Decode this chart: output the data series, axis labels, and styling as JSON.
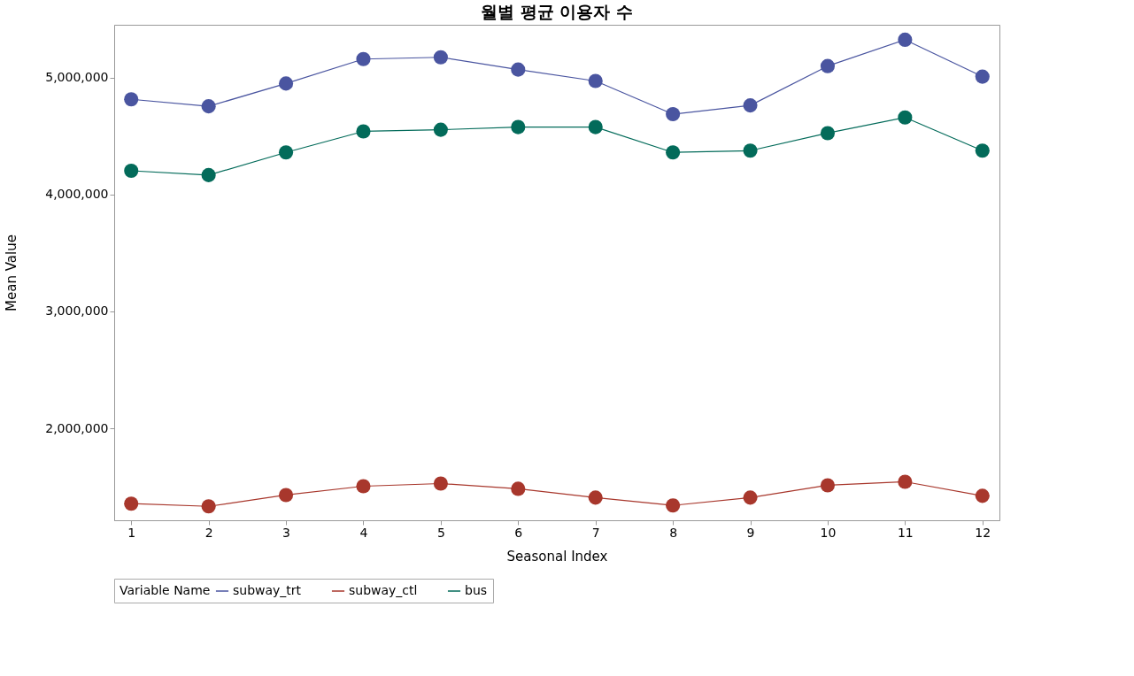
{
  "chart_data": {
    "type": "line",
    "title": "월별 평균 이용자 수",
    "xlabel": "Seasonal Index",
    "ylabel": "Mean Value",
    "legend_title": "Variable Name",
    "x": [
      1,
      2,
      3,
      4,
      5,
      6,
      7,
      8,
      9,
      10,
      11,
      12
    ],
    "series": [
      {
        "name": "subway_trt",
        "color": "#4a55a0",
        "values": [
          4813000,
          4753000,
          4948000,
          5157000,
          5172000,
          5067000,
          4970000,
          4686000,
          4761000,
          5097000,
          5322000,
          5007000
        ]
      },
      {
        "name": "subway_ctl",
        "color": "#a8372c",
        "values": [
          1357000,
          1334000,
          1431000,
          1506000,
          1529000,
          1484000,
          1409000,
          1342000,
          1409000,
          1514000,
          1544000,
          1424000
        ]
      },
      {
        "name": "bus",
        "color": "#036b5a",
        "values": [
          4202000,
          4165000,
          4359000,
          4539000,
          4553000,
          4576000,
          4576000,
          4359000,
          4374000,
          4524000,
          4658000,
          4374000
        ]
      }
    ],
    "xlim": [
      0.78,
      12.22
    ],
    "xticks": [
      1,
      2,
      3,
      4,
      5,
      6,
      7,
      8,
      9,
      10,
      11,
      12
    ],
    "ylim": [
      1215000,
      5450000
    ],
    "yticks": [
      {
        "value": 2000000,
        "label": "2,000,000"
      },
      {
        "value": 3000000,
        "label": "3,000,000"
      },
      {
        "value": 4000000,
        "label": "4,000,000"
      },
      {
        "value": 5000000,
        "label": "5,000,000"
      }
    ],
    "grid": false,
    "legend": "bottom",
    "marker": "circle",
    "line_style": "solid"
  }
}
